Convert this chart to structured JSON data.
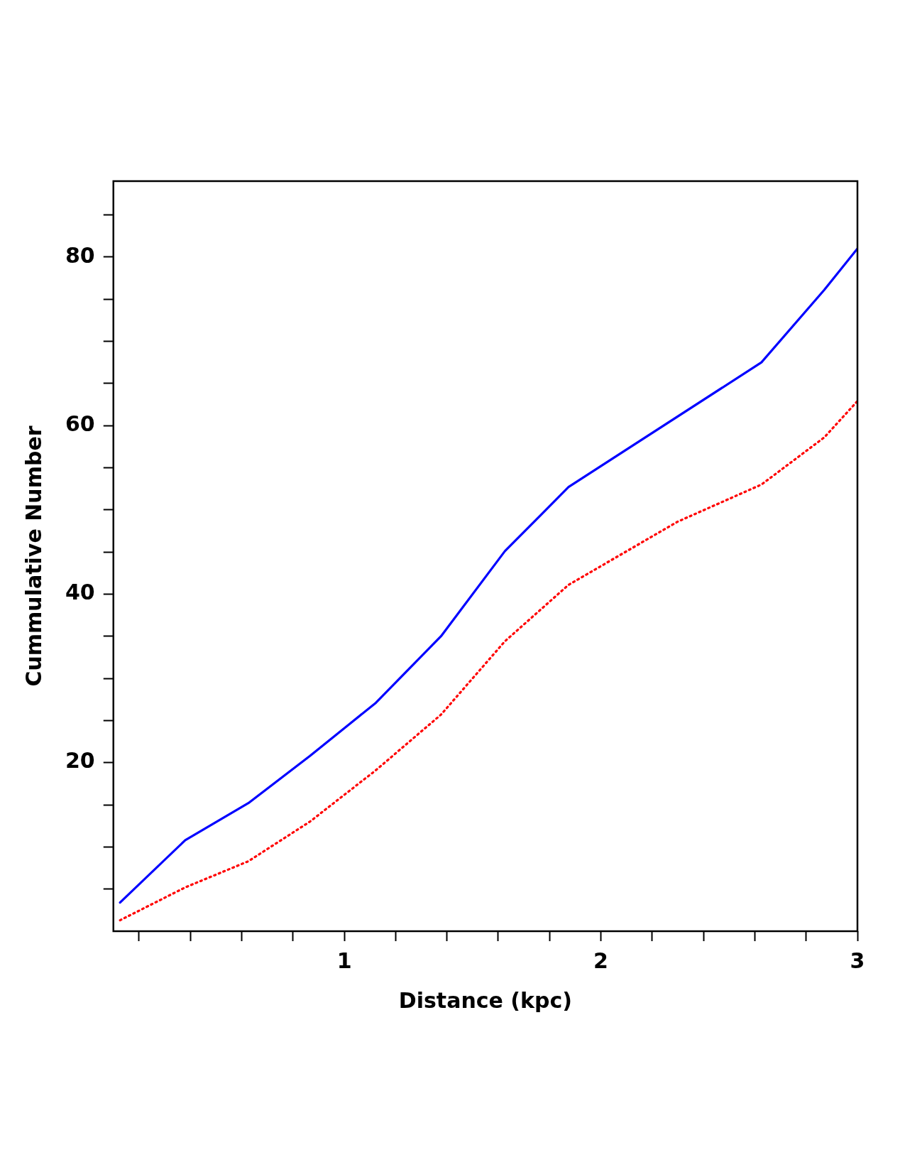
{
  "chart_data": {
    "type": "line",
    "xlabel": "Distance (kpc)",
    "ylabel": "Cummulative Number",
    "xlim": [
      0.1,
      3
    ],
    "ylim": [
      0,
      89
    ],
    "xticks": [
      {
        "value": 0.2,
        "label": null
      },
      {
        "value": 0.4,
        "label": null
      },
      {
        "value": 0.6,
        "label": null
      },
      {
        "value": 0.8,
        "label": null
      },
      1,
      {
        "value": 1.2,
        "label": null
      },
      {
        "value": 1.4,
        "label": null
      },
      {
        "value": 1.6,
        "label": null
      },
      {
        "value": 1.8,
        "label": null
      },
      2,
      {
        "value": 2.2,
        "label": null
      },
      {
        "value": 2.4,
        "label": null
      },
      {
        "value": 2.6,
        "label": null
      },
      {
        "value": 2.8,
        "label": null
      },
      3
    ],
    "yticks": [
      {
        "value": 5,
        "label": null
      },
      {
        "value": 10,
        "label": null
      },
      {
        "value": 15,
        "label": null
      },
      20,
      {
        "value": 25,
        "label": null
      },
      {
        "value": 30,
        "label": null
      },
      {
        "value": 35,
        "label": null
      },
      40,
      {
        "value": 45,
        "label": null
      },
      {
        "value": 50,
        "label": null
      },
      {
        "value": 55,
        "label": null
      },
      60,
      {
        "value": 65,
        "label": null
      },
      {
        "value": 70,
        "label": null
      },
      {
        "value": 75,
        "label": null
      },
      80,
      {
        "value": 85,
        "label": null
      }
    ],
    "grid": false,
    "legend": false,
    "marker": "none",
    "series": [
      {
        "color": "#0000ff",
        "line_style": "solid",
        "x": [
          0.126,
          0.38,
          0.626,
          0.866,
          1.123,
          1.377,
          1.626,
          1.874,
          2.626,
          2.871,
          3.0
        ],
        "values": [
          3.4,
          10.8,
          15.2,
          20.8,
          27.1,
          35.0,
          45.1,
          52.7,
          67.5,
          76.1,
          81.0
        ]
      },
      {
        "color": "#ff0000",
        "line_style": "dotted",
        "x": [
          0.126,
          0.38,
          0.626,
          0.866,
          1.123,
          1.377,
          1.626,
          1.874,
          2.3,
          2.626,
          2.871,
          3.0
        ],
        "values": [
          1.3,
          5.2,
          8.3,
          13.0,
          19.1,
          25.7,
          34.4,
          41.1,
          48.6,
          53.0,
          58.6,
          62.9
        ]
      }
    ]
  }
}
